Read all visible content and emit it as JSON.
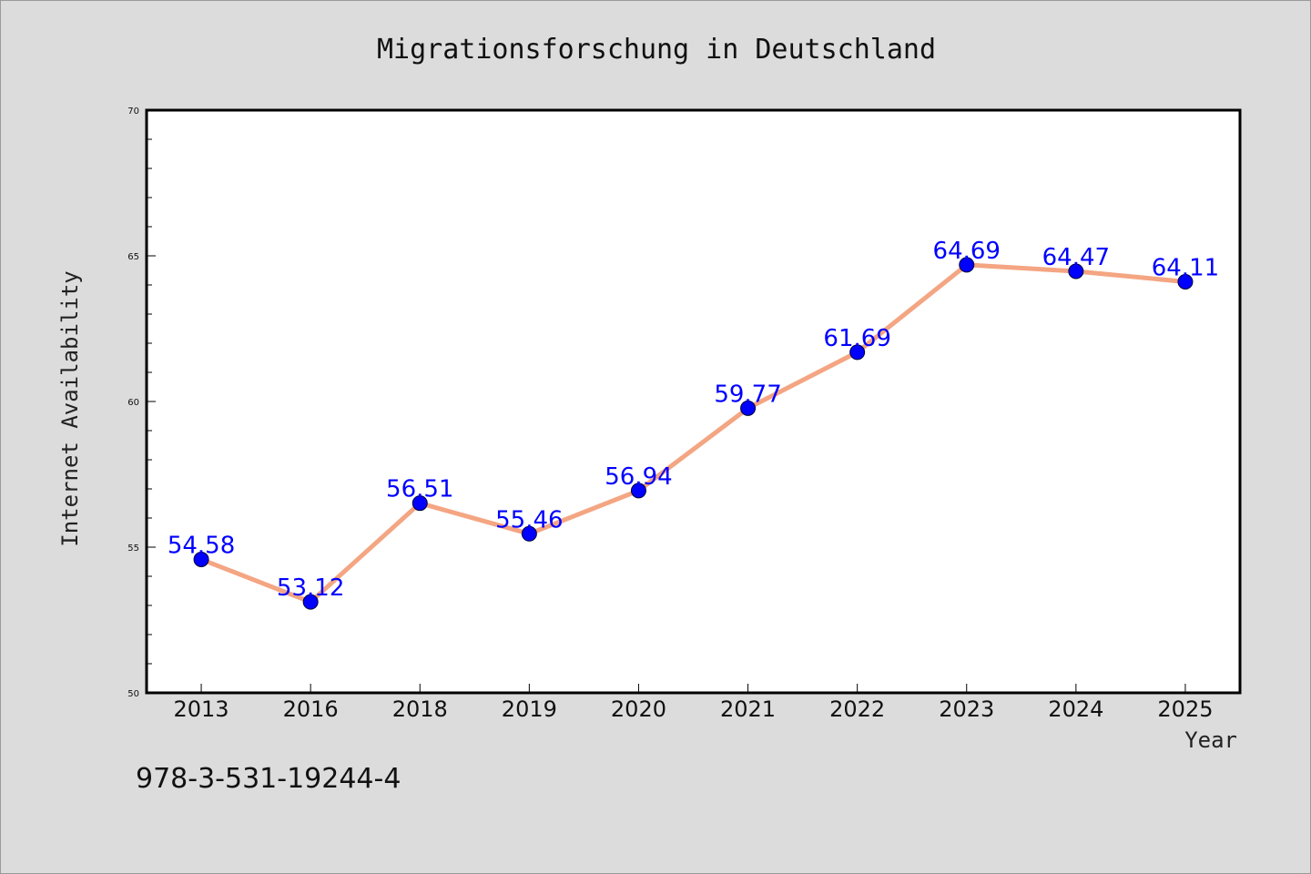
{
  "chart_data": {
    "type": "line",
    "title": "Migrationsforschung in Deutschland",
    "xlabel": "Year",
    "ylabel": "Internet Availability",
    "categories": [
      "2013",
      "2016",
      "2018",
      "2019",
      "2020",
      "2021",
      "2022",
      "2023",
      "2024",
      "2025"
    ],
    "values": [
      54.58,
      53.12,
      56.51,
      55.46,
      56.94,
      59.77,
      61.69,
      64.69,
      64.47,
      64.11
    ],
    "data_labels": [
      "54.58",
      "53.12",
      "56.51",
      "55.46",
      "56.94",
      "59.77",
      "61.69",
      "64.69",
      "64.47",
      "64.11"
    ],
    "ylim": [
      50,
      70
    ],
    "yticks": [
      "50",
      "55",
      "60",
      "65",
      "70"
    ],
    "grid": false,
    "line_color": "#f4a582",
    "marker_color": "#0000ff",
    "label_color": "#0000ff",
    "plot_background": "#ffffff",
    "figure_background": "#dcdcdc"
  },
  "footer": {
    "isbn": "978-3-531-19244-4"
  }
}
